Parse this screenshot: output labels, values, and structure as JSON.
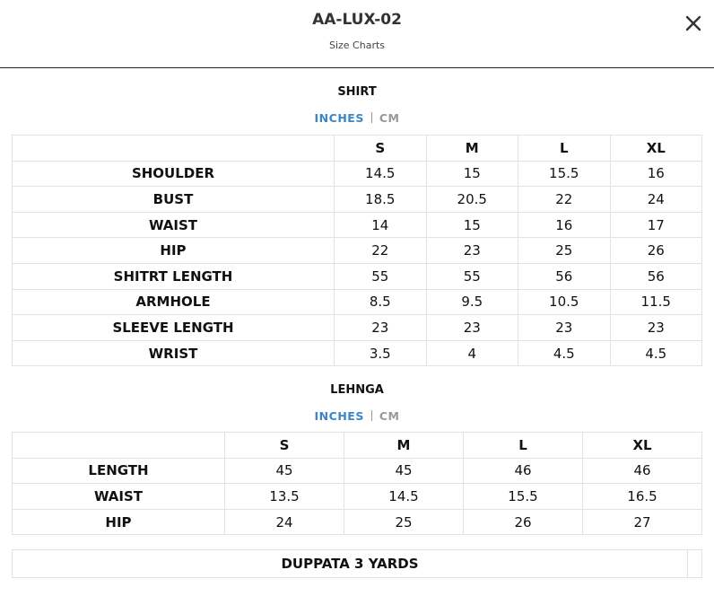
{
  "header": {
    "title": "AA-LUX-02",
    "subtitle": "Size Charts"
  },
  "sections": [
    {
      "title": "SHIRT",
      "units": [
        "INCHES",
        "CM"
      ],
      "table": {
        "columns": [
          "S",
          "M",
          "L",
          "XL"
        ],
        "rows": [
          [
            "SHOULDER",
            "14.5",
            "15",
            "15.5",
            "16"
          ],
          [
            "BUST",
            "18.5",
            "20.5",
            "22",
            "24"
          ],
          [
            "WAIST",
            "14",
            "15",
            "16",
            "17"
          ],
          [
            "HIP",
            "22",
            "23",
            "25",
            "26"
          ],
          [
            "SHITRT LENGTH",
            "55",
            "55",
            "56",
            "56"
          ],
          [
            "ARMHOLE",
            "8.5",
            "9.5",
            "10.5",
            "11.5"
          ],
          [
            "SLEEVE LENGTH",
            "23",
            "23",
            "23",
            "23"
          ],
          [
            "WRIST",
            "3.5",
            "4",
            "4.5",
            "4.5"
          ]
        ]
      }
    },
    {
      "title": "LEHNGA",
      "units": [
        "INCHES",
        "CM"
      ],
      "table": {
        "columns": [
          "S",
          "M",
          "L",
          "XL"
        ],
        "rows": [
          [
            "LENGTH",
            "45",
            "45",
            "46",
            "46"
          ],
          [
            "WAIST",
            "13.5",
            "14.5",
            "15.5",
            "16.5"
          ],
          [
            "HIP",
            "24",
            "25",
            "26",
            "27"
          ]
        ]
      }
    }
  ],
  "note": "DUPPATA 3 YARDS"
}
